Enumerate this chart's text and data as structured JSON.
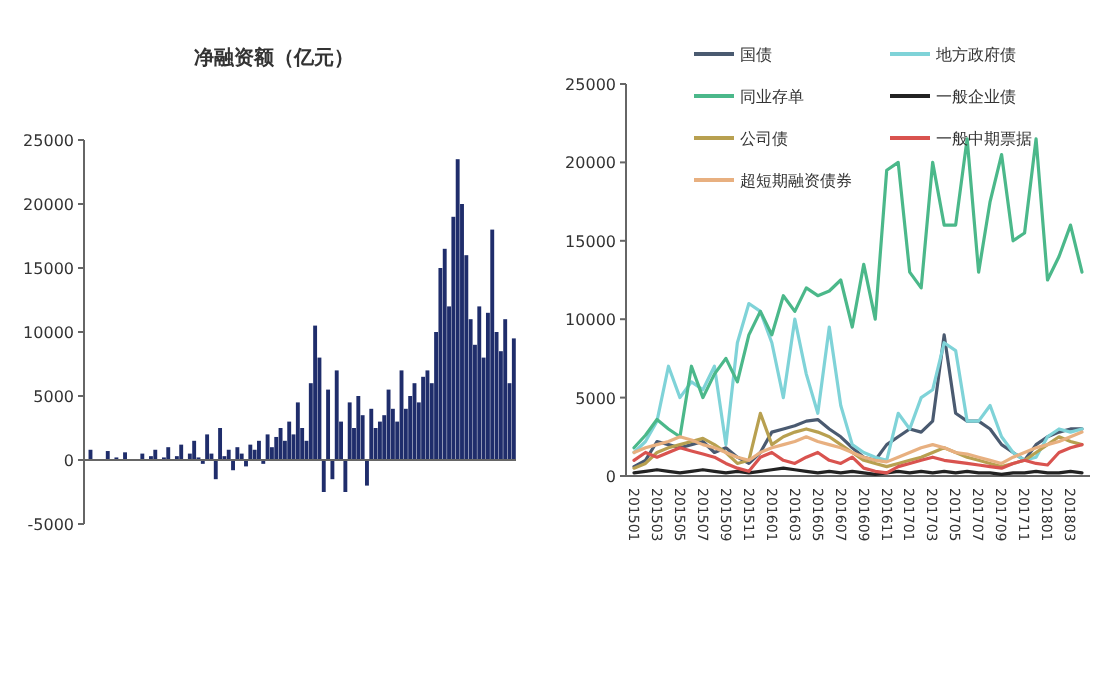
{
  "chart_data": [
    {
      "type": "bar",
      "title": "净融资额（亿元）",
      "categories": [
        null,
        null,
        null,
        null,
        null,
        null,
        null,
        null,
        null,
        null,
        null,
        null,
        null,
        null,
        null,
        null,
        null,
        null,
        null,
        null,
        null,
        null,
        null,
        null,
        null,
        null,
        null,
        null,
        null,
        null,
        null,
        null,
        null,
        null,
        null,
        null,
        null,
        null,
        null,
        null,
        null,
        null,
        null,
        null,
        null,
        null,
        null,
        null,
        null,
        null,
        null,
        null,
        null,
        null,
        null,
        null,
        null,
        null,
        null,
        null,
        null,
        null,
        null,
        null,
        null,
        null,
        null,
        null,
        null,
        null,
        null,
        null,
        null,
        null,
        null,
        null,
        null,
        null,
        null,
        null,
        null,
        null,
        null,
        null,
        null,
        null,
        null,
        null,
        null,
        null,
        null,
        null,
        null,
        null,
        null,
        null,
        null,
        null,
        null,
        null
      ],
      "values": [
        0,
        800,
        0,
        null,
        0,
        700,
        0,
        200,
        0,
        600,
        0,
        null,
        0,
        500,
        0,
        300,
        800,
        0,
        200,
        1000,
        0,
        300,
        1200,
        0,
        500,
        1500,
        200,
        -300,
        2000,
        500,
        -1500,
        2500,
        300,
        800,
        -800,
        1000,
        500,
        -500,
        1200,
        800,
        1500,
        -300,
        2000,
        1000,
        1800,
        2500,
        1500,
        3000,
        2000,
        4500,
        2500,
        1500,
        6000,
        10500,
        8000,
        -2500,
        5500,
        -1500,
        7000,
        3000,
        -2500,
        4500,
        2500,
        5000,
        3500,
        -2000,
        4000,
        2500,
        3000,
        3500,
        5500,
        4000,
        3000,
        7000,
        4000,
        5000,
        6000,
        4500,
        6500,
        7000,
        6000,
        10000,
        15000,
        16500,
        12000,
        19000,
        23500,
        20000,
        16000,
        11000,
        9000,
        12000,
        8000,
        11500,
        18000,
        10000,
        8500,
        11000,
        6000,
        9500
      ],
      "color": "#1f2d6b",
      "ylim": [
        -5000,
        25000
      ],
      "yticks": [
        -5000,
        0,
        5000,
        10000,
        15000,
        20000,
        25000
      ]
    },
    {
      "type": "line",
      "categories": [
        "201501",
        null,
        "201503",
        null,
        "201505",
        null,
        "201507",
        null,
        "201509",
        null,
        "201511",
        null,
        "201601",
        null,
        "201603",
        null,
        "201605",
        null,
        "201607",
        null,
        "201609",
        null,
        "201611",
        null,
        "201701",
        null,
        "201703",
        null,
        "201705",
        null,
        "201707",
        null,
        "201709",
        null,
        "201711",
        null,
        "201801",
        null,
        "201803",
        null
      ],
      "series": [
        {
          "name": "国债",
          "color": "#4a5a70",
          "values": [
            600,
            1000,
            2200,
            2000,
            1800,
            2000,
            2200,
            1500,
            1800,
            1200,
            800,
            1500,
            2800,
            3000,
            3200,
            3500,
            3600,
            3000,
            2500,
            1800,
            1200,
            1000,
            2000,
            2500,
            3000,
            2800,
            3500,
            9000,
            4000,
            3500,
            3500,
            3000,
            2000,
            1500,
            1000,
            2000,
            2500,
            2800,
            3000,
            3000
          ]
        },
        {
          "name": "地方政府债",
          "color": "#7fd3d8",
          "values": [
            1500,
            2200,
            3500,
            7000,
            5000,
            6000,
            5500,
            7000,
            2000,
            8500,
            11000,
            10500,
            8500,
            5000,
            10000,
            6500,
            4000,
            9500,
            4500,
            2000,
            1500,
            1200,
            1000,
            4000,
            3000,
            5000,
            5500,
            8500,
            8000,
            3500,
            3500,
            4500,
            2500,
            1500,
            1000,
            1200,
            2500,
            3000,
            2800,
            3000
          ]
        },
        {
          "name": "同业存单",
          "color": "#4bb88a",
          "values": [
            1800,
            2600,
            3600,
            3000,
            2500,
            7000,
            5000,
            6500,
            7500,
            6000,
            9000,
            10500,
            9000,
            11500,
            10500,
            12000,
            11500,
            11800,
            12500,
            9500,
            13500,
            10000,
            19500,
            20000,
            13000,
            12000,
            20000,
            16000,
            16000,
            21500,
            13000,
            17500,
            20500,
            15000,
            15500,
            21500,
            12500,
            14000,
            16000,
            13000
          ]
        },
        {
          "name": "一般企业债",
          "color": "#222222",
          "values": [
            200,
            300,
            400,
            300,
            200,
            300,
            400,
            300,
            200,
            300,
            200,
            300,
            400,
            500,
            400,
            300,
            200,
            300,
            200,
            300,
            200,
            100,
            200,
            300,
            200,
            300,
            200,
            300,
            200,
            300,
            200,
            200,
            100,
            200,
            200,
            300,
            200,
            200,
            300,
            200
          ]
        },
        {
          "name": "公司债",
          "color": "#b8a050",
          "values": [
            500,
            800,
            1500,
            1800,
            2000,
            2200,
            2400,
            2000,
            1500,
            800,
            1000,
            4000,
            2000,
            2500,
            2800,
            3000,
            2800,
            2500,
            2000,
            1500,
            1000,
            800,
            600,
            800,
            1000,
            1200,
            1500,
            1800,
            1500,
            1200,
            1000,
            800,
            600,
            800,
            1000,
            1500,
            2000,
            2500,
            2200,
            2000
          ]
        },
        {
          "name": "一般中期票据",
          "color": "#d9534f",
          "values": [
            1000,
            1500,
            1200,
            1500,
            1800,
            1600,
            1400,
            1200,
            800,
            500,
            300,
            1200,
            1500,
            1000,
            800,
            1200,
            1500,
            1000,
            800,
            1200,
            500,
            300,
            200,
            600,
            800,
            1000,
            1200,
            1000,
            900,
            800,
            700,
            600,
            500,
            800,
            1000,
            800,
            700,
            1500,
            1800,
            2000
          ]
        },
        {
          "name": "超短期融资债券",
          "color": "#e8b080",
          "values": [
            1500,
            1800,
            2000,
            2200,
            2500,
            2300,
            2000,
            1800,
            1500,
            1200,
            1000,
            1500,
            1800,
            2000,
            2200,
            2500,
            2200,
            2000,
            1800,
            1500,
            1200,
            1000,
            900,
            1200,
            1500,
            1800,
            2000,
            1800,
            1500,
            1400,
            1200,
            1000,
            800,
            1200,
            1500,
            1800,
            2000,
            2200,
            2500,
            2800
          ]
        }
      ],
      "ylim": [
        0,
        25000
      ],
      "yticks": [
        0,
        5000,
        10000,
        15000,
        20000,
        25000
      ],
      "legend": "top left"
    }
  ]
}
